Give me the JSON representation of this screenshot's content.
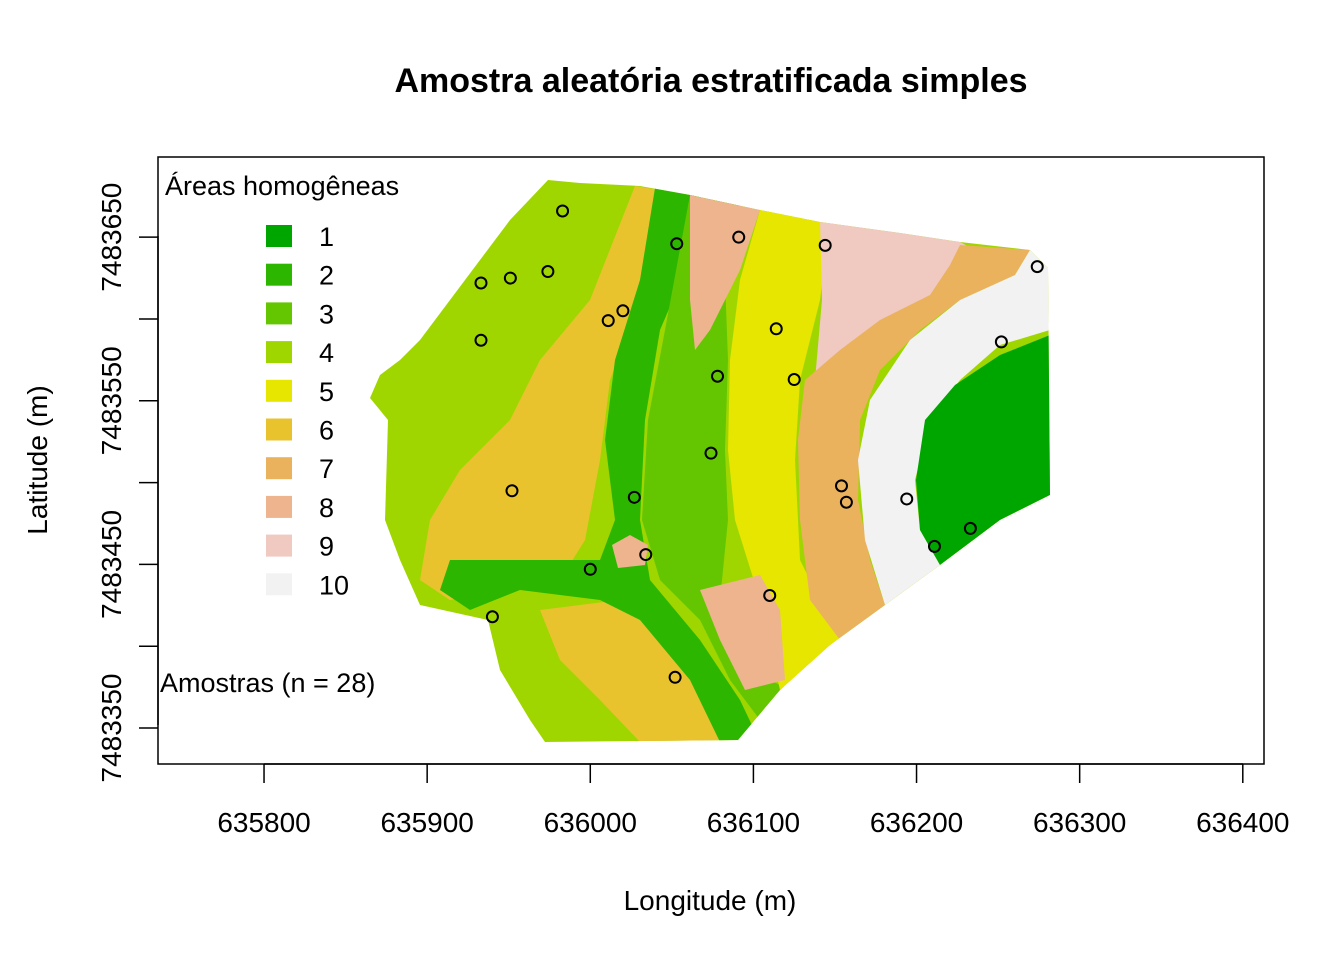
{
  "title": "Amostra aleatória estratificada simples",
  "x_axis": {
    "label": "Longitude (m)",
    "ticks": [
      "635800",
      "635900",
      "636000",
      "636100",
      "636200",
      "636300",
      "636400"
    ]
  },
  "y_axis": {
    "label": "Latitude (m)",
    "ticks": [
      "7483350",
      "7483450",
      "7483550",
      "7483650"
    ]
  },
  "legend": {
    "title": "Áreas homogêneas",
    "items": [
      {
        "label": "1",
        "color": "#00A600"
      },
      {
        "label": "2",
        "color": "#2DB600"
      },
      {
        "label": "3",
        "color": "#63C600"
      },
      {
        "label": "4",
        "color": "#A0D600"
      },
      {
        "label": "5",
        "color": "#E6E600"
      },
      {
        "label": "6",
        "color": "#E8C32E"
      },
      {
        "label": "7",
        "color": "#EBB25E"
      },
      {
        "label": "8",
        "color": "#EDB48E"
      },
      {
        "label": "9",
        "color": "#F0C9C0"
      },
      {
        "label": "10",
        "color": "#F2F2F2"
      }
    ],
    "samples_label": "Amostras (n = 28)"
  },
  "chart_data": {
    "type": "scatter",
    "title": "Amostra aleatória estratificada simples",
    "xlabel": "Longitude (m)",
    "ylabel": "Latitude (m)",
    "xlim": [
      635735,
      636413
    ],
    "ylim": [
      7483328,
      7483699
    ],
    "x_ticks": [
      635800,
      635900,
      636000,
      636100,
      636200,
      636300,
      636400
    ],
    "y_ticks": [
      7483350,
      7483400,
      7483450,
      7483500,
      7483550,
      7483600,
      7483650
    ],
    "marker": "open-circle",
    "points": [
      {
        "x": 635983,
        "y": 7483666
      },
      {
        "x": 636053,
        "y": 7483646
      },
      {
        "x": 636091,
        "y": 7483650
      },
      {
        "x": 636144,
        "y": 7483645
      },
      {
        "x": 636274,
        "y": 7483632
      },
      {
        "x": 635933,
        "y": 7483622
      },
      {
        "x": 635951,
        "y": 7483625
      },
      {
        "x": 635974,
        "y": 7483629
      },
      {
        "x": 636020,
        "y": 7483605
      },
      {
        "x": 636011,
        "y": 7483599
      },
      {
        "x": 636114,
        "y": 7483594
      },
      {
        "x": 636252,
        "y": 7483586
      },
      {
        "x": 635933,
        "y": 7483587
      },
      {
        "x": 636078,
        "y": 7483565
      },
      {
        "x": 636125,
        "y": 7483563
      },
      {
        "x": 636074,
        "y": 7483518
      },
      {
        "x": 636154,
        "y": 7483498
      },
      {
        "x": 636157,
        "y": 7483488
      },
      {
        "x": 635952,
        "y": 7483495
      },
      {
        "x": 636027,
        "y": 7483491
      },
      {
        "x": 636194,
        "y": 7483490
      },
      {
        "x": 636233,
        "y": 7483472
      },
      {
        "x": 636211,
        "y": 7483461
      },
      {
        "x": 636034,
        "y": 7483456
      },
      {
        "x": 636000,
        "y": 7483447
      },
      {
        "x": 636110,
        "y": 7483431
      },
      {
        "x": 635940,
        "y": 7483418
      },
      {
        "x": 636052,
        "y": 7483381
      }
    ],
    "strata_colors": [
      "#00A600",
      "#2DB600",
      "#63C600",
      "#A0D600",
      "#E6E600",
      "#E8C32E",
      "#EBB25E",
      "#EDB48E",
      "#F0C9C0",
      "#F2F2F2"
    ]
  }
}
